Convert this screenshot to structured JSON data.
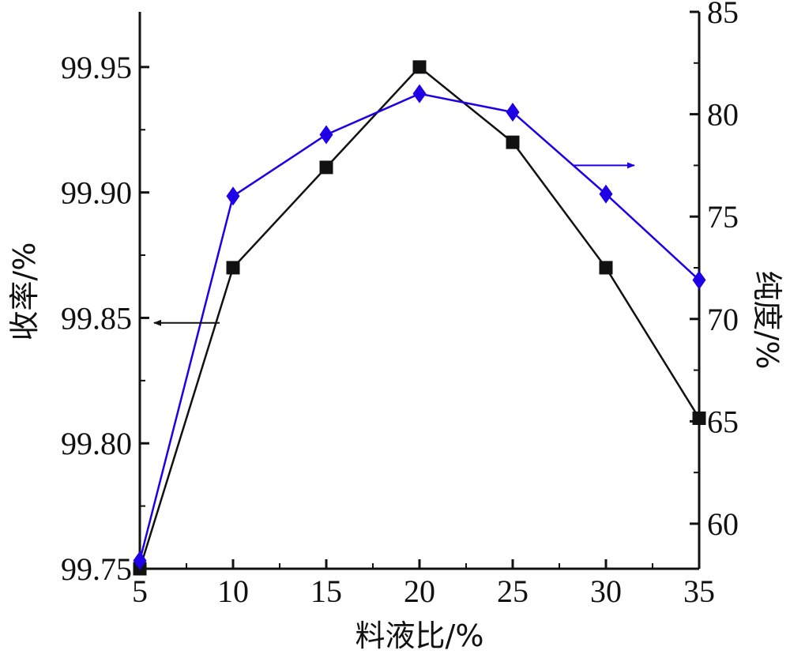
{
  "chart_data": {
    "type": "line",
    "xlabel": "料液比/%",
    "ylabel_left": "收率/%",
    "ylabel_right": "纯度/%",
    "x": [
      5,
      10,
      15,
      20,
      25,
      30,
      35
    ],
    "x_ticks": [
      "5",
      "10",
      "15",
      "20",
      "25",
      "30",
      "35"
    ],
    "xlim": [
      5,
      35
    ],
    "y_left_ticks": [
      "99.75",
      "99.80",
      "99.85",
      "99.90",
      "99.95"
    ],
    "ylim_left": [
      99.75,
      99.972
    ],
    "y_right_ticks": [
      "60",
      "65",
      "70",
      "75",
      "80",
      "85"
    ],
    "ylim_right": [
      57.8,
      85
    ],
    "grid": false,
    "series": [
      {
        "axis": "left",
        "marker": "square",
        "color": "#111111",
        "values": [
          99.75,
          99.87,
          99.91,
          99.95,
          99.92,
          99.87,
          99.81
        ]
      },
      {
        "axis": "right",
        "marker": "diamond",
        "color": "#1f00e6",
        "values": [
          58.2,
          76.0,
          79.0,
          81.0,
          80.1,
          76.1,
          71.9
        ]
      }
    ],
    "annotations": [
      {
        "type": "arrow",
        "direction": "left",
        "series_index": 0,
        "color": "#111111"
      },
      {
        "type": "arrow",
        "direction": "right",
        "series_index": 1,
        "color": "#1f00e6"
      }
    ]
  }
}
